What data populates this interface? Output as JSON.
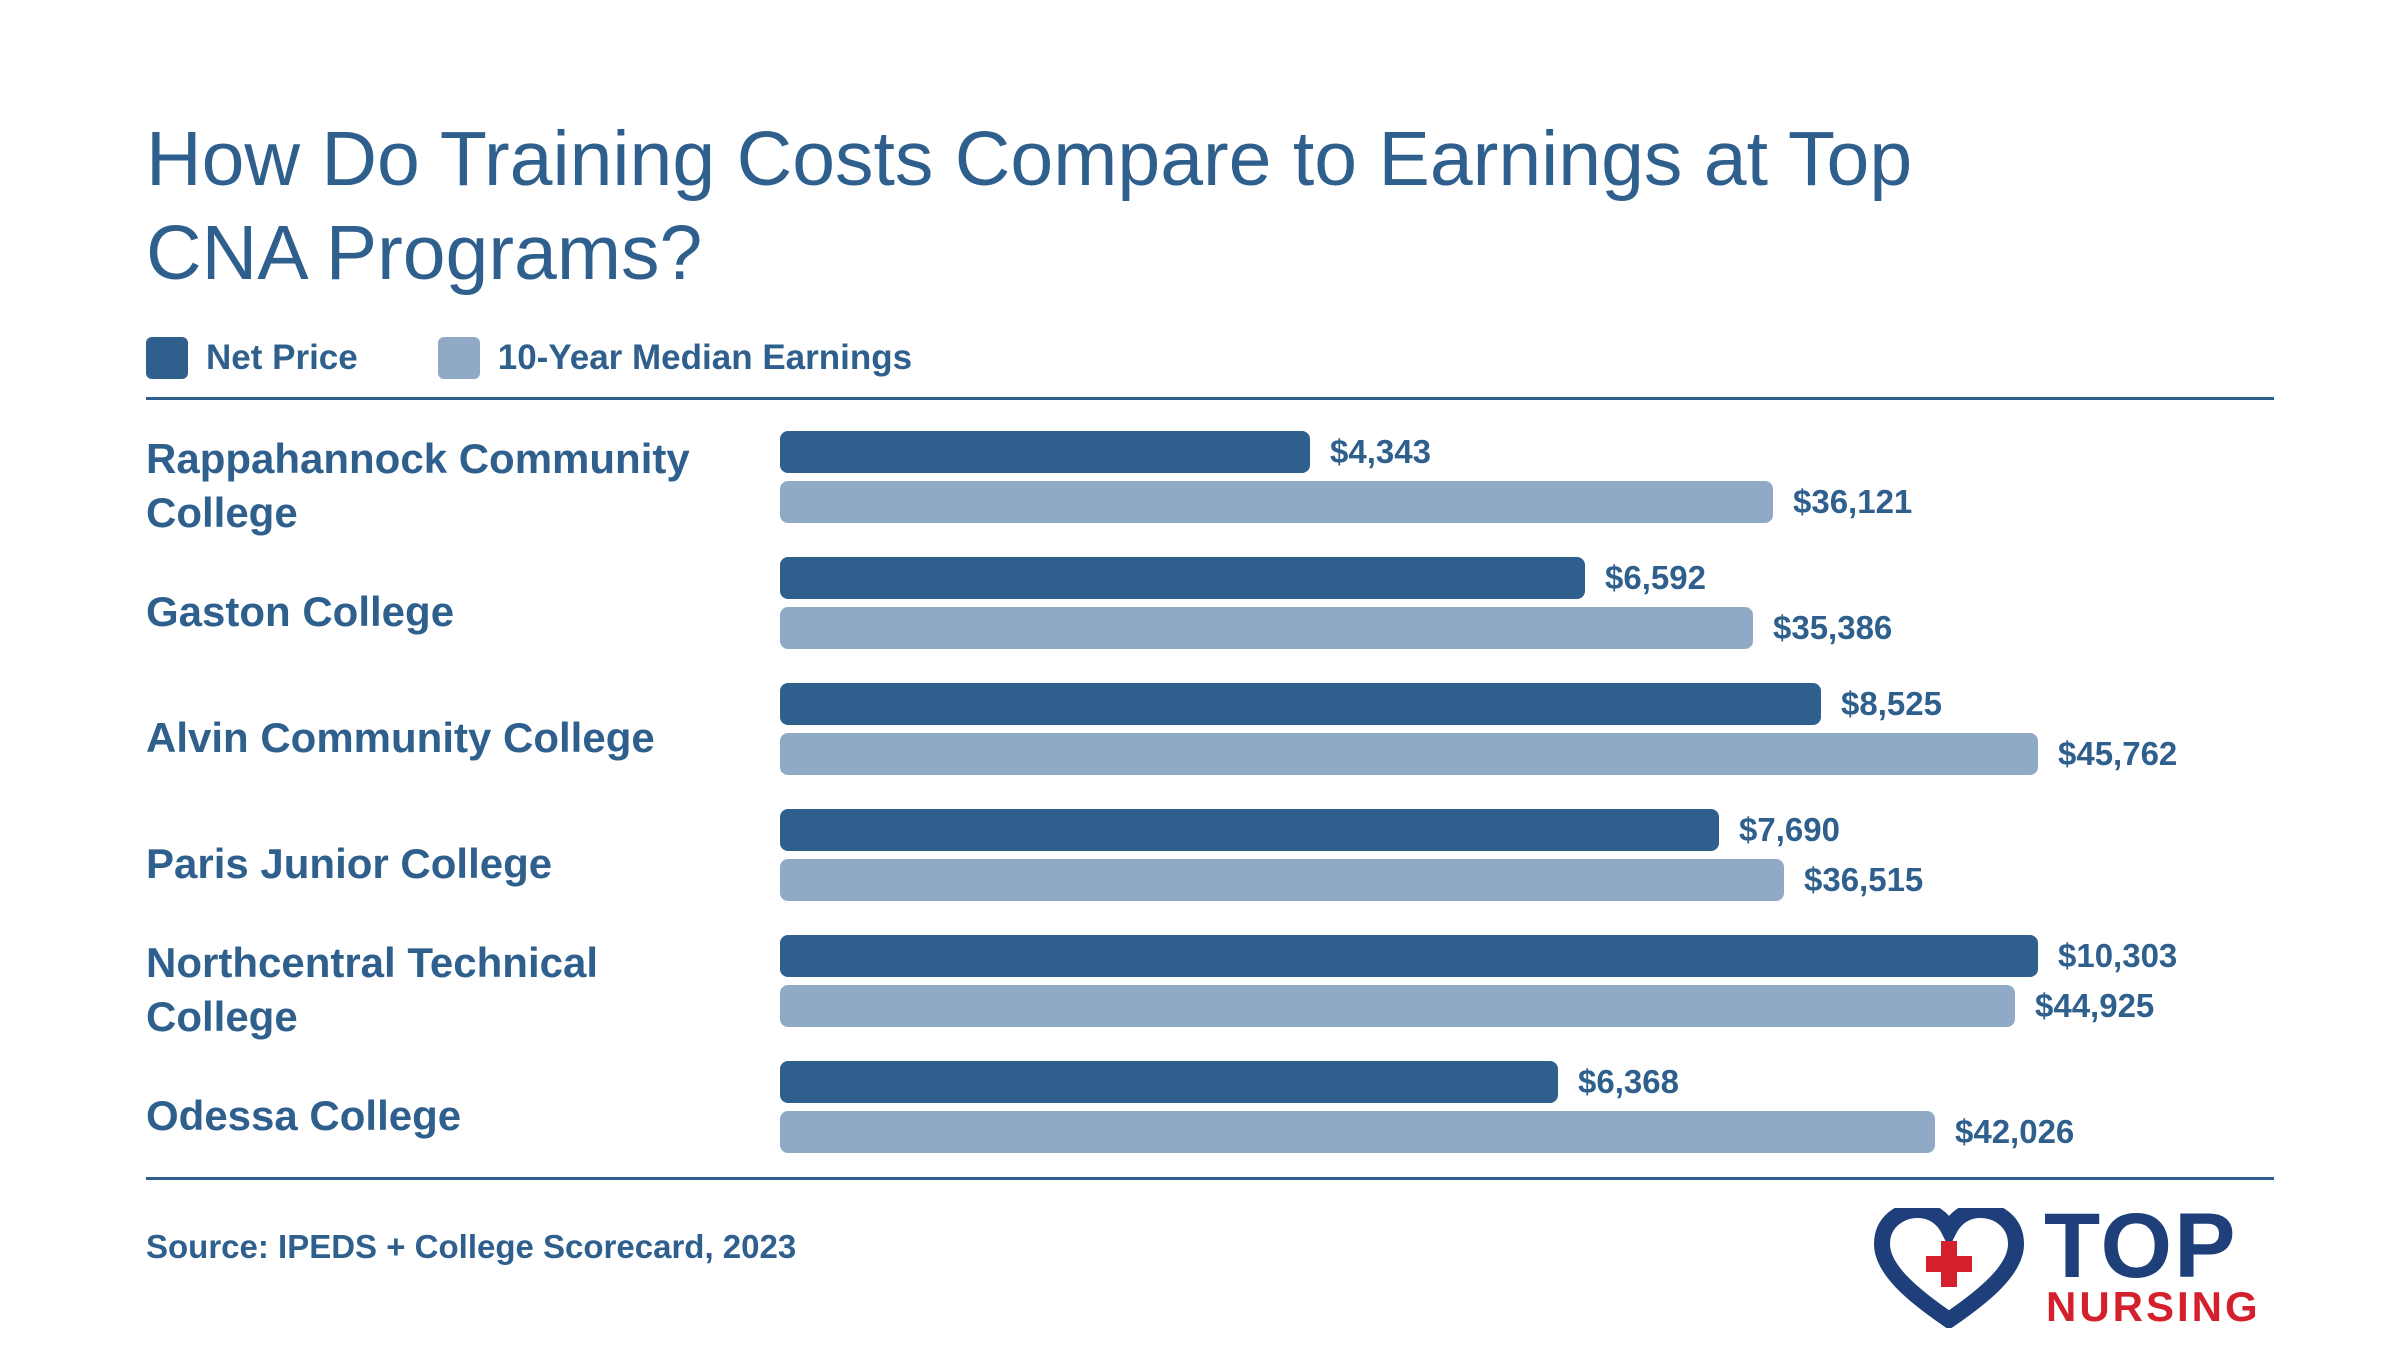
{
  "colors": {
    "net_price": "#2e5f8d",
    "earnings": "#8fa9c6",
    "text": "#2e5f8d",
    "logo_navy": "#1e3f7a",
    "logo_red": "#d4202c"
  },
  "legend": {
    "net_price": "Net Price",
    "earnings": "10-Year Median Earnings"
  },
  "source": "Source: IPEDS + College Scorecard, 2023",
  "logo": {
    "top": "TOP",
    "nursing": "NURSING"
  },
  "chart_data": {
    "type": "bar",
    "orientation": "horizontal",
    "title": "How Do Training Costs Compare to Earnings at Top CNA Programs?",
    "legend_position": "top-left",
    "grid": false,
    "categories": [
      "Rappahannock Community College",
      "Gaston College",
      "Alvin Community College",
      "Paris Junior College",
      "Northcentral Technical College",
      "Odessa College"
    ],
    "series": [
      {
        "name": "Net Price",
        "values": [
          4343,
          6592,
          8525,
          7690,
          10303,
          6368
        ],
        "labels": [
          "$4,343",
          "$6,592",
          "$8,525",
          "$7,690",
          "$10,303",
          "$6,368"
        ],
        "max": 10303
      },
      {
        "name": "10-Year Median Earnings",
        "values": [
          36121,
          35386,
          45762,
          36515,
          44925,
          42026
        ],
        "labels": [
          "$36,121",
          "$35,386",
          "$45,762",
          "$36,515",
          "$44,925",
          "$42,026"
        ],
        "max": 45762
      }
    ]
  }
}
